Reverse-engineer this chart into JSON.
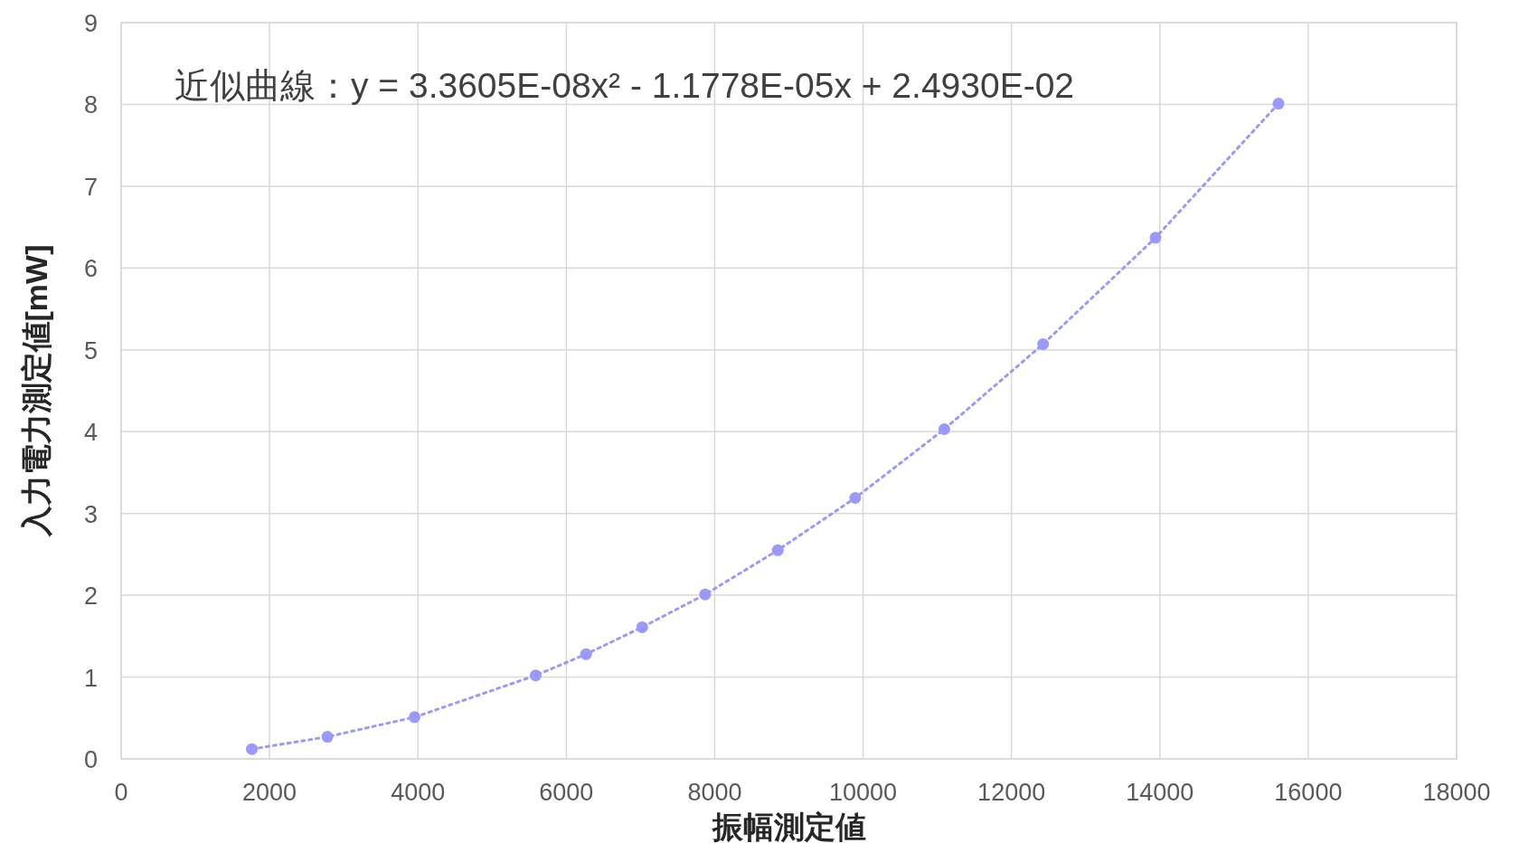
{
  "chart_data": {
    "type": "line",
    "xlabel": "振幅測定値",
    "ylabel": "入力電力測定値[mW]",
    "annotations": [
      "近似曲線：y = 3.3605E-08x² - 1.1778E-05x + 2.4930E-02"
    ],
    "series": [
      {
        "color": "#9999ff",
        "x": [
          1762,
          2780,
          3955,
          5587,
          6266,
          7023,
          7871,
          8850,
          9894,
          11095,
          12427,
          13941,
          15599
        ],
        "values": [
          0.12,
          0.27,
          0.51,
          1.02,
          1.28,
          1.61,
          2.01,
          2.55,
          3.19,
          4.03,
          5.07,
          6.37,
          8.01
        ]
      }
    ],
    "xlim": [
      0,
      18000
    ],
    "xticks": [
      0,
      2000,
      4000,
      6000,
      8000,
      10000,
      12000,
      14000,
      16000,
      18000
    ],
    "ylim": [
      0,
      9
    ],
    "yticks": [
      0,
      1,
      2,
      3,
      4,
      5,
      6,
      7,
      8,
      9
    ],
    "grid": true,
    "marker": "circle",
    "line_style": "dotted"
  }
}
